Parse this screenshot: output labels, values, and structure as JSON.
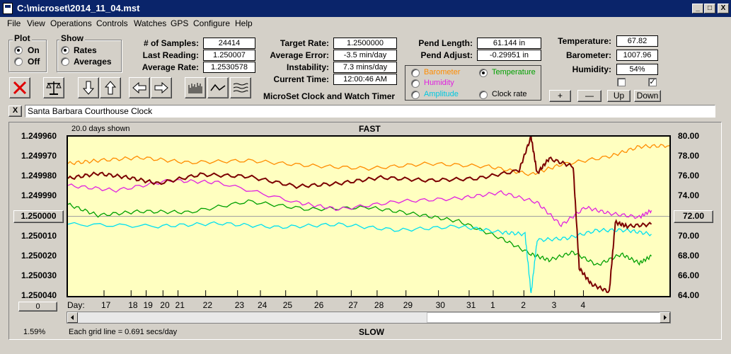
{
  "window": {
    "title": "C:\\microset\\2014_11_04.mst",
    "min_btn": "_",
    "max_btn": "□",
    "close_btn": "X"
  },
  "menu": [
    "File",
    "View",
    "Operations",
    "Controls",
    "Watches",
    "GPS",
    "Configure",
    "Help"
  ],
  "plot_group": {
    "title": "Plot",
    "on": "On",
    "off": "Off",
    "selected": "On"
  },
  "show_group": {
    "title": "Show",
    "rates": "Rates",
    "averages": "Averages",
    "selected": "Rates"
  },
  "stats": {
    "samples_label": "# of Samples:",
    "samples": "24414",
    "last_label": "Last Reading:",
    "last": "1.250007",
    "avg_rate_label": "Average Rate:",
    "avg_rate": "1.2530578"
  },
  "rates": {
    "target_label": "Target Rate:",
    "target": "1.2500000",
    "avg_err_label": "Average Error:",
    "avg_err": "-3.5 min/day",
    "instab_label": "Instability:",
    "instab": "7.3 mins/day",
    "time_label": "Current Time:",
    "time": "12:00:46 AM"
  },
  "app_caption": "MicroSet Clock and Watch Timer",
  "pend": {
    "length_label": "Pend Length:",
    "length": "61.144 in",
    "adjust_label": "Pend Adjust:",
    "adjust": "-0.29951 in"
  },
  "env": {
    "temp_label": "Temperature:",
    "temp": "67.82",
    "baro_label": "Barometer:",
    "baro": "1007.96",
    "hum_label": "Humidity:",
    "hum": "54%",
    "check1": "",
    "check2": "✓"
  },
  "legend": {
    "barometer": "Barometer",
    "temperature": "Temperature",
    "humidity": "Humidity",
    "amplitude": "Amplitude",
    "clock_rate": "Clock rate",
    "selected": "Temperature"
  },
  "adjust_buttons": {
    "plus": "+",
    "minus": "—",
    "up": "Up",
    "down": "Down"
  },
  "description": {
    "close": "X",
    "text": "Santa Barbara Courthouse Clock"
  },
  "chart_info": {
    "days_shown": "20.0 days shown",
    "fast": "FAST",
    "slow": "SLOW",
    "grid_note": "Each grid line = 0.691 secs/day",
    "pct": "1.59%",
    "center_value": "1.250000",
    "right_center": "72.00",
    "zero_btn": "0",
    "day_label": "Day:"
  },
  "colors": {
    "barometer": "#ff8c00",
    "temperature": "#00a000",
    "humidity": "#e020e0",
    "amplitude": "#00e0f0",
    "clock_rate": "#7b0000",
    "plot_bg": "#ffffc0"
  },
  "chart_data": {
    "type": "line",
    "left_axis": [
      "1.249960",
      "1.249970",
      "1.249980",
      "1.249990",
      "1.250000",
      "1.250010",
      "1.250020",
      "1.250030",
      "1.250040"
    ],
    "right_axis": [
      "80.00",
      "78.00",
      "76.00",
      "74.00",
      "72.00",
      "70.00",
      "68.00",
      "66.00",
      "64.00"
    ],
    "ylim_left": [
      1.24996,
      1.25004
    ],
    "ylim_right": [
      64,
      80
    ],
    "days": [
      "17",
      "18",
      "19",
      "20",
      "21",
      "22",
      "23",
      "24",
      "25",
      "26",
      "27",
      "28",
      "29",
      "30",
      "31",
      "1",
      "2",
      "3",
      "4"
    ],
    "series": [
      {
        "name": "Barometer",
        "color": "#ff8c00",
        "points": [
          [
            0,
            77.3
          ],
          [
            0.05,
            77.6
          ],
          [
            0.12,
            77.9
          ],
          [
            0.2,
            77.4
          ],
          [
            0.3,
            77.6
          ],
          [
            0.4,
            77.1
          ],
          [
            0.5,
            76.8
          ],
          [
            0.6,
            77.3
          ],
          [
            0.7,
            77.0
          ],
          [
            0.77,
            76.2
          ],
          [
            0.82,
            77.2
          ],
          [
            0.9,
            78.0
          ],
          [
            0.95,
            79.0
          ],
          [
            1.0,
            79.1
          ]
        ]
      },
      {
        "name": "Temperature",
        "color": "#00a000",
        "points": [
          [
            0,
            73.2
          ],
          [
            0.05,
            72.1
          ],
          [
            0.12,
            72.5
          ],
          [
            0.2,
            72.4
          ],
          [
            0.3,
            73.5
          ],
          [
            0.4,
            72.7
          ],
          [
            0.5,
            72.9
          ],
          [
            0.58,
            72.2
          ],
          [
            0.65,
            71.5
          ],
          [
            0.72,
            69.8
          ],
          [
            0.77,
            68.2
          ],
          [
            0.8,
            67.6
          ],
          [
            0.84,
            68.4
          ],
          [
            0.88,
            67.1
          ],
          [
            0.92,
            68.2
          ],
          [
            0.95,
            67.3
          ],
          [
            0.97,
            68.0
          ]
        ]
      },
      {
        "name": "Humidity",
        "color": "#e020e0",
        "points": [
          [
            0,
            75.1
          ],
          [
            0.08,
            74.6
          ],
          [
            0.17,
            75.6
          ],
          [
            0.25,
            75.4
          ],
          [
            0.38,
            73.4
          ],
          [
            0.45,
            72.7
          ],
          [
            0.55,
            73.5
          ],
          [
            0.65,
            73.8
          ],
          [
            0.72,
            74.4
          ],
          [
            0.78,
            73.4
          ],
          [
            0.82,
            71.1
          ],
          [
            0.86,
            72.9
          ],
          [
            0.9,
            72.3
          ],
          [
            0.95,
            71.9
          ],
          [
            0.97,
            72.6
          ]
        ]
      },
      {
        "name": "Amplitude",
        "color": "#00e0f0",
        "points": [
          [
            0,
            71.2
          ],
          [
            0.15,
            71.0
          ],
          [
            0.25,
            71.3
          ],
          [
            0.35,
            70.9
          ],
          [
            0.45,
            71.2
          ],
          [
            0.55,
            70.6
          ],
          [
            0.65,
            71.0
          ],
          [
            0.72,
            70.4
          ],
          [
            0.76,
            70.2
          ],
          [
            0.77,
            64.2
          ],
          [
            0.78,
            69.6
          ],
          [
            0.83,
            69.8
          ],
          [
            0.88,
            70.6
          ],
          [
            0.93,
            70.6
          ],
          [
            0.97,
            70.2
          ]
        ]
      },
      {
        "name": "Clock rate",
        "color": "#7b0000",
        "points": [
          [
            0,
            75.8
          ],
          [
            0.05,
            76.3
          ],
          [
            0.1,
            75.9
          ],
          [
            0.15,
            75.3
          ],
          [
            0.22,
            76.2
          ],
          [
            0.3,
            76.0
          ],
          [
            0.38,
            75.0
          ],
          [
            0.45,
            75.3
          ],
          [
            0.52,
            75.9
          ],
          [
            0.6,
            75.6
          ],
          [
            0.68,
            75.8
          ],
          [
            0.75,
            76.6
          ],
          [
            0.77,
            80.0
          ],
          [
            0.78,
            76.3
          ],
          [
            0.8,
            77.8
          ],
          [
            0.84,
            77.0
          ],
          [
            0.85,
            66.8
          ],
          [
            0.87,
            65.2
          ],
          [
            0.9,
            64.4
          ],
          [
            0.91,
            71.4
          ],
          [
            0.93,
            71.0
          ],
          [
            0.97,
            71.2
          ]
        ]
      }
    ]
  }
}
